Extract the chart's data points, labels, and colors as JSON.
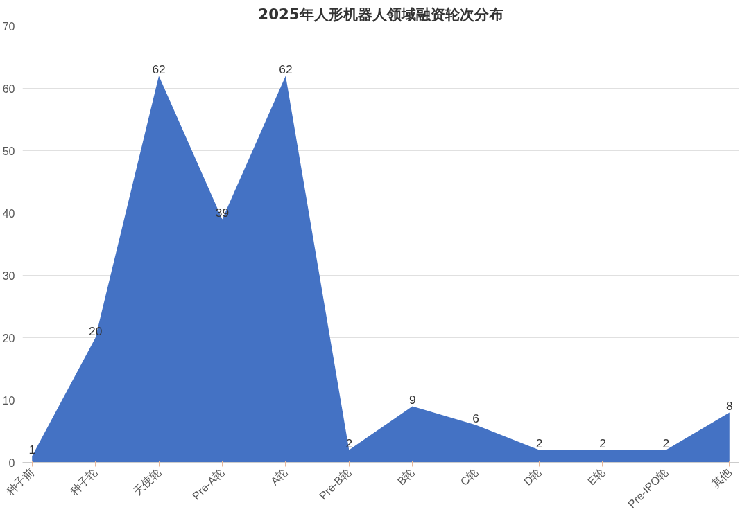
{
  "chart_data": {
    "type": "area",
    "title": "2025年人形机器人领域融资轮次分布",
    "categories": [
      "种子前",
      "种子轮",
      "天使轮",
      "Pre-A轮",
      "A轮",
      "Pre-B轮",
      "B轮",
      "C轮",
      "D轮",
      "E轮",
      "Pre-IPO轮",
      "其他"
    ],
    "values": [
      1,
      20,
      62,
      39,
      62,
      2,
      9,
      6,
      2,
      2,
      2,
      8
    ],
    "color": "#4472c4",
    "ylim": [
      0,
      70
    ],
    "yticks": [
      0,
      10,
      20,
      30,
      40,
      50,
      60,
      70
    ],
    "grid": "y",
    "data_labels": true
  }
}
